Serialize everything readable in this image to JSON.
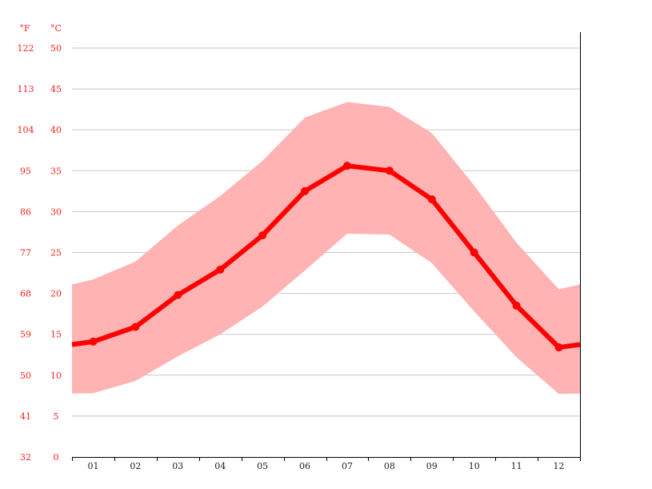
{
  "chart_data": {
    "type": "line",
    "title": "",
    "xlabel": "",
    "ylabel": "",
    "y_units_left": "°F",
    "y_units_right": "°C",
    "categories": [
      "01",
      "02",
      "03",
      "04",
      "05",
      "06",
      "07",
      "08",
      "09",
      "10",
      "11",
      "12"
    ],
    "ylim": [
      0,
      50
    ],
    "yticks_c": [
      0,
      5,
      10,
      15,
      20,
      25,
      30,
      35,
      40,
      45,
      50
    ],
    "yticks_f": [
      32,
      41,
      50,
      59,
      68,
      77,
      86,
      95,
      104,
      113,
      122
    ],
    "grid": true,
    "legend": "none",
    "series": [
      {
        "role": "mean",
        "values": [
          14.1,
          15.9,
          19.8,
          22.9,
          27.1,
          32.5,
          35.6,
          35.0,
          31.5,
          25.0,
          18.5,
          13.4
        ],
        "color": "#ff0000"
      }
    ],
    "band": {
      "upper": [
        21.7,
        23.9,
        28.3,
        31.9,
        36.2,
        41.5,
        43.4,
        42.8,
        39.6,
        33.2,
        26.2,
        20.5
      ],
      "lower": [
        7.8,
        9.3,
        12.3,
        15.0,
        18.4,
        22.8,
        27.3,
        27.2,
        23.7,
        17.8,
        12.2,
        7.7
      ],
      "color": "#ffb3b3"
    }
  }
}
